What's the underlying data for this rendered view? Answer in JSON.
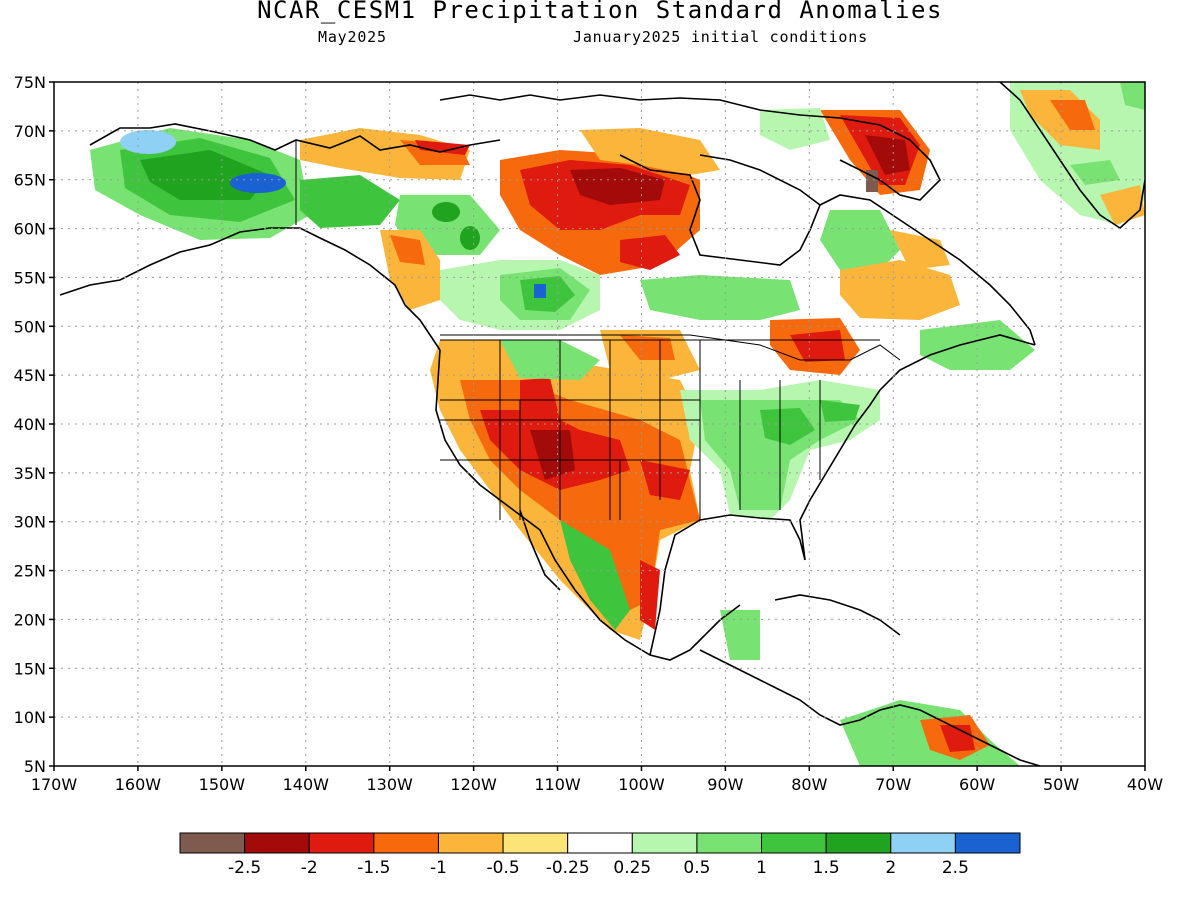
{
  "title": "NCAR_CESM1 Precipitation Standard Anomalies",
  "valid_month": "May2025",
  "initial_conditions": "January2025 initial conditions",
  "map": {
    "lat_labels": [
      "75N",
      "70N",
      "65N",
      "60N",
      "55N",
      "50N",
      "45N",
      "40N",
      "35N",
      "30N",
      "25N",
      "20N",
      "15N",
      "10N",
      "5N"
    ],
    "lon_labels": [
      "170W",
      "160W",
      "150W",
      "140W",
      "130W",
      "120W",
      "110W",
      "100W",
      "90W",
      "80W",
      "70W",
      "60W",
      "50W",
      "40W"
    ],
    "lat_range": [
      5,
      75
    ],
    "lon_range": [
      -170,
      -40
    ],
    "grid": "dotted"
  },
  "legend": {
    "colors": [
      "#7f5a4e",
      "#a30b0b",
      "#df1a0e",
      "#f7690d",
      "#fbb53b",
      "#fde476",
      "#ffffff",
      "#b7f6af",
      "#78e272",
      "#3fc53d",
      "#20a420",
      "#8fd0f5",
      "#1a62d2"
    ],
    "labels": [
      "-2.5",
      "-2",
      "-1.5",
      "-1",
      "-0.5",
      "-0.25",
      "0.25",
      "0.5",
      "1",
      "1.5",
      "2",
      "2.5"
    ]
  }
}
